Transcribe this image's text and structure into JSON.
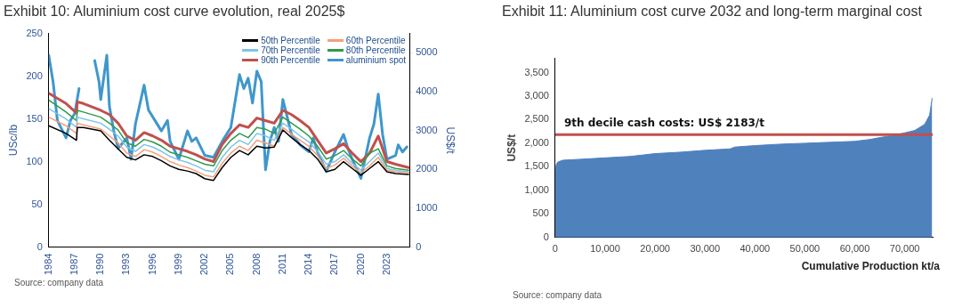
{
  "chart_data": [
    {
      "type": "line",
      "title": "Exhibit 10: Aluminium cost curve evolution, real 2025$",
      "ylabel": "USc/lb",
      "y2label": "US$/t",
      "x": [
        1984,
        1986,
        1987.2,
        1987.3,
        1988,
        1990,
        1991,
        1992,
        1993,
        1994,
        1995,
        1996,
        1997,
        1998,
        1999,
        2000,
        2001,
        2002,
        2003,
        2004,
        2005,
        2006,
        2007,
        2008,
        2009,
        2010,
        2011,
        2012,
        2013,
        2014,
        2015,
        2016,
        2017,
        2018,
        2019,
        2020,
        2021,
        2022,
        2023,
        2024,
        2025.5
      ],
      "xlim": [
        1984,
        2025.6
      ],
      "xticks": [
        1984,
        1987,
        1990,
        1993,
        1996,
        1999,
        2002,
        2005,
        2008,
        2011,
        2014,
        2017,
        2020,
        2023
      ],
      "ylim": [
        0,
        250
      ],
      "yticks": [
        0,
        50,
        100,
        150,
        200,
        250
      ],
      "y2lim": [
        0,
        5500
      ],
      "y2ticks": [
        0,
        1000,
        2000,
        3000,
        4000,
        5000
      ],
      "grid": false,
      "legend": "top right",
      "series": [
        {
          "name": "50th Percentile",
          "color": "#000000",
          "values": [
            142,
            133,
            125,
            140,
            140,
            136,
            125,
            115,
            105,
            102,
            108,
            106,
            101,
            95,
            91,
            89,
            86,
            80,
            78,
            93,
            105,
            113,
            108,
            118,
            116,
            117,
            137,
            128,
            120,
            113,
            103,
            88,
            91,
            100,
            92,
            84,
            92,
            100,
            88,
            86,
            85
          ]
        },
        {
          "name": "60th Percentile",
          "color": "#f4a07a",
          "values": [
            152,
            142,
            133,
            145,
            143,
            138,
            130,
            122,
            110,
            106,
            114,
            111,
            106,
            100,
            96,
            93,
            89,
            84,
            82,
            98,
            110,
            118,
            113,
            125,
            122,
            118,
            140,
            132,
            125,
            118,
            107,
            92,
            96,
            104,
            95,
            87,
            95,
            105,
            90,
            88,
            87
          ]
        },
        {
          "name": "70th Percentile",
          "color": "#7fc4e8",
          "values": [
            162,
            150,
            140,
            152,
            150,
            145,
            138,
            130,
            117,
            112,
            120,
            117,
            112,
            106,
            102,
            99,
            95,
            90,
            88,
            105,
            117,
            125,
            120,
            133,
            130,
            125,
            145,
            138,
            130,
            123,
            112,
            97,
            100,
            108,
            98,
            90,
            100,
            110,
            92,
            90,
            88
          ]
        },
        {
          "name": "80th Percentile",
          "color": "#2e9a48",
          "values": [
            172,
            158,
            148,
            160,
            158,
            152,
            145,
            137,
            122,
            118,
            126,
            123,
            118,
            111,
            108,
            105,
            101,
            97,
            95,
            113,
            125,
            133,
            128,
            140,
            138,
            133,
            152,
            145,
            138,
            130,
            118,
            103,
            107,
            113,
            103,
            95,
            110,
            115,
            95,
            92,
            90
          ]
        },
        {
          "name": "90th Percentile",
          "color": "#c0504d",
          "values": [
            180,
            168,
            157,
            170,
            168,
            160,
            155,
            145,
            130,
            125,
            134,
            130,
            125,
            118,
            115,
            112,
            108,
            103,
            100,
            120,
            133,
            143,
            140,
            151,
            148,
            145,
            160,
            155,
            148,
            140,
            125,
            110,
            115,
            121,
            110,
            100,
            110,
            130,
            100,
            97,
            93
          ]
        },
        {
          "name": "aluminium spot",
          "color": "#3f97cc",
          "axis": "y2",
          "x": [
            1984,
            1984.5,
            1985,
            1986,
            1986.5,
            1987,
            1987.5,
            1988,
            1989,
            1989.3,
            1989.8,
            1990,
            1990.7,
            1991,
            1991.5,
            1992,
            1993,
            1993.5,
            1994,
            1995,
            1995.5,
            1996,
            1997,
            1997.7,
            1998,
            1999,
            2000,
            2000.5,
            2001,
            2002,
            2003,
            2004,
            2005,
            2006,
            2006.5,
            2007,
            2007.5,
            2008,
            2008.5,
            2009,
            2009.5,
            2010,
            2010.5,
            2011,
            2011.5,
            2012,
            2013,
            2014,
            2014.5,
            2015,
            2016,
            2017,
            2018,
            2018.5,
            2019,
            2020,
            2021,
            2021.5,
            2022,
            2022.5,
            2023,
            2024,
            2024.3,
            2024.8,
            2025.3
          ],
          "values": [
            4940,
            4260,
            3260,
            2810,
            3260,
            3440,
            4080,
            null,
            null,
            4800,
            4260,
            3800,
            4940,
            3620,
            2990,
            2540,
            2810,
            2260,
            3170,
            4170,
            3530,
            3350,
            2990,
            3260,
            2720,
            2260,
            2990,
            2720,
            2810,
            2360,
            2310,
            2720,
            3080,
            4440,
            4080,
            4350,
            3710,
            4530,
            4260,
            1990,
            2720,
            3080,
            2720,
            3800,
            3350,
            2900,
            2630,
            2450,
            2810,
            2450,
            1950,
            2450,
            2900,
            2540,
            2260,
            1770,
            2810,
            3170,
            3940,
            2900,
            2260,
            2360,
            2630,
            2450,
            2580
          ]
        }
      ],
      "annotations": [
        "Source: company data"
      ]
    },
    {
      "type": "area",
      "title": "Exhibit 11: Aluminium cost curve 2032 and long-term marginal cost",
      "xlabel": "Cumulative Production kt/a",
      "ylabel": "US$/t",
      "x": [
        0,
        200,
        500,
        1500,
        5000,
        10000,
        15000,
        20000,
        25000,
        30000,
        35000,
        36000,
        40000,
        45000,
        50000,
        55000,
        60000,
        63000,
        65000,
        68000,
        70000,
        72000,
        74000,
        75000,
        75500
      ],
      "xlim": [
        0,
        75600
      ],
      "xticks": [
        0,
        {
          "value": 10000,
          "label": "10,000"
        },
        {
          "value": 20000,
          "label": "20,000"
        },
        {
          "value": 30000,
          "label": "30,000"
        },
        {
          "value": 40000,
          "label": "40,000"
        },
        {
          "value": 50000,
          "label": "50,000"
        },
        {
          "value": 60000,
          "label": "60,000"
        },
        {
          "value": 70000,
          "label": "70,000"
        }
      ],
      "ylim": [
        0,
        3800
      ],
      "yticks": [
        0,
        500,
        {
          "value": 1000,
          "label": "1,000"
        },
        {
          "value": 1500,
          "label": "1,500"
        },
        {
          "value": 2000,
          "label": "2,000"
        },
        {
          "value": 2500,
          "label": "2,500"
        },
        {
          "value": 3000,
          "label": "3,000"
        },
        {
          "value": 3500,
          "label": "3,500"
        }
      ],
      "grid": false,
      "legend": false,
      "series": [
        {
          "color": "#4f81bd",
          "values": [
            1380,
            1550,
            1600,
            1640,
            1660,
            1690,
            1720,
            1780,
            1810,
            1850,
            1880,
            1920,
            1950,
            1980,
            2000,
            2020,
            2040,
            2080,
            2120,
            2170,
            2220,
            2270,
            2400,
            2600,
            2950
          ]
        }
      ],
      "ref_lines": [
        {
          "axis": "y",
          "value": 2183,
          "label": "9th decile cash costs: US$ 2183/t",
          "color": "#c0504d"
        }
      ],
      "annotations": [
        "Source: company data"
      ]
    }
  ]
}
